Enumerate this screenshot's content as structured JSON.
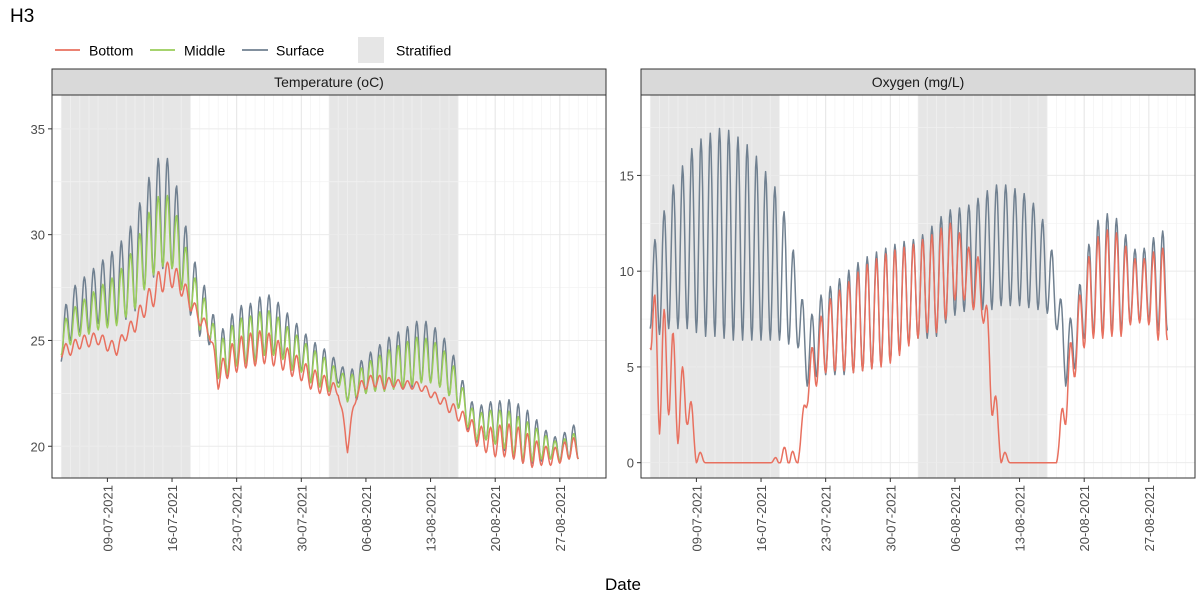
{
  "figure": {
    "title": "H3",
    "xlabel": "Date"
  },
  "legend": {
    "placement": "top-left",
    "items": [
      {
        "label": "Bottom",
        "kind": "line",
        "color": "#E8705F"
      },
      {
        "label": "Middle",
        "kind": "line",
        "color": "#9ACD5A"
      },
      {
        "label": "Surface",
        "kind": "line",
        "color": "#708090"
      },
      {
        "label": "Stratified",
        "kind": "fill",
        "color": "#E6E6E6"
      }
    ]
  },
  "x_ticks": [
    "09-07-2021",
    "16-07-2021",
    "23-07-2021",
    "30-07-2021",
    "06-08-2021",
    "13-08-2021",
    "20-08-2021",
    "27-08-2021"
  ],
  "chart_data": [
    {
      "type": "line",
      "title": "Temperature (oC)",
      "x_range": [
        "2021-07-03",
        "2021-09-01"
      ],
      "ylim": [
        18.5,
        36.6
      ],
      "y_ticks": [
        20,
        25,
        30,
        35
      ],
      "grid": true,
      "stratified_periods": [
        [
          "2021-07-04",
          "2021-07-18"
        ],
        [
          "2021-08-02",
          "2021-08-16"
        ]
      ],
      "daily_cycle": true,
      "series": [
        {
          "name": "Surface",
          "color": "#708090",
          "start": "2021-07-04",
          "mean": [
            25.0,
            26.2,
            26.6,
            26.8,
            27.2,
            27.4,
            27.6,
            28.0,
            28.6,
            29.8,
            30.6,
            31.2,
            30.8,
            29.4,
            27.8,
            26.6,
            26.0,
            24.2,
            24.6,
            25.2,
            25.3,
            25.4,
            25.8,
            25.7,
            25.4,
            24.8,
            24.6,
            24.0,
            23.8,
            23.5,
            23.5,
            22.8,
            23.0,
            23.4,
            23.6,
            23.8,
            24.0,
            24.1,
            24.3,
            24.5,
            24.4,
            24.1,
            23.6,
            22.8,
            21.6,
            21.0,
            21.2,
            21.1,
            21.0,
            20.8,
            20.5,
            20.4,
            20.1,
            20.0,
            19.8,
            20.2
          ],
          "amplitude": [
            1.0,
            1.2,
            1.2,
            1.4,
            1.4,
            1.6,
            1.8,
            2.0,
            2.2,
            2.4,
            2.6,
            2.8,
            2.4,
            2.0,
            1.6,
            1.4,
            1.2,
            1.0,
            1.3,
            1.4,
            1.4,
            1.4,
            1.5,
            1.3,
            1.2,
            1.2,
            1.0,
            1.0,
            1.0,
            0.9,
            0.5,
            0.7,
            0.8,
            0.9,
            1.0,
            1.2,
            1.3,
            1.4,
            1.5,
            1.5,
            1.4,
            1.3,
            1.2,
            1.0,
            0.8,
            0.8,
            0.9,
            1.0,
            1.2,
            1.4,
            1.3,
            1.2,
            0.8,
            0.6,
            0.5,
            0.8
          ]
        },
        {
          "name": "Middle",
          "color": "#9ACD5A",
          "start": "2021-07-04",
          "mean": [
            25.0,
            25.6,
            26.0,
            26.2,
            26.5,
            26.7,
            26.9,
            27.4,
            28.0,
            29.0,
            29.8,
            30.3,
            30.0,
            28.8,
            27.5,
            26.4,
            25.9,
            24.0,
            24.4,
            24.9,
            25.0,
            25.1,
            25.4,
            25.3,
            25.0,
            24.5,
            24.3,
            23.8,
            23.6,
            23.3,
            23.2,
            22.7,
            22.9,
            23.2,
            23.4,
            23.5,
            23.7,
            23.8,
            24.0,
            24.1,
            24.0,
            23.8,
            23.3,
            22.6,
            21.5,
            20.9,
            21.0,
            20.9,
            20.8,
            20.6,
            20.3,
            20.2,
            20.0,
            19.9,
            19.7,
            20.0
          ],
          "amplitude": [
            0.7,
            0.8,
            0.8,
            0.9,
            1.0,
            1.1,
            1.2,
            1.3,
            1.5,
            1.6,
            1.7,
            1.8,
            1.6,
            1.4,
            1.1,
            0.9,
            0.8,
            0.8,
            1.0,
            1.1,
            1.1,
            1.1,
            1.1,
            1.0,
            0.9,
            0.9,
            0.8,
            0.8,
            0.8,
            0.7,
            0.4,
            0.6,
            0.6,
            0.7,
            0.8,
            0.9,
            1.0,
            1.0,
            1.1,
            1.1,
            1.0,
            1.0,
            0.9,
            0.8,
            0.6,
            0.6,
            0.7,
            0.8,
            0.9,
            1.0,
            0.9,
            0.9,
            0.6,
            0.5,
            0.4,
            0.6
          ]
        },
        {
          "name": "Bottom",
          "color": "#E8705F",
          "start": "2021-07-04",
          "mean": [
            24.5,
            24.6,
            24.9,
            25.0,
            25.1,
            24.8,
            24.6,
            25.3,
            25.8,
            26.6,
            27.2,
            28.0,
            28.1,
            27.6,
            26.8,
            26.0,
            25.5,
            23.2,
            23.9,
            24.3,
            24.5,
            24.6,
            24.7,
            24.5,
            24.2,
            23.9,
            23.6,
            23.2,
            23.0,
            22.8,
            22.6,
            20.0,
            22.6,
            23.0,
            23.1,
            23.0,
            23.0,
            22.9,
            22.9,
            22.8,
            22.5,
            22.2,
            21.9,
            21.5,
            21.1,
            20.5,
            20.3,
            20.2,
            20.3,
            20.2,
            20.0,
            19.7,
            19.6,
            19.5,
            19.6,
            19.9
          ],
          "amplitude": [
            0.3,
            0.3,
            0.3,
            0.3,
            0.3,
            0.3,
            0.3,
            0.3,
            0.4,
            0.5,
            0.6,
            0.7,
            0.6,
            0.5,
            0.4,
            0.3,
            0.3,
            0.5,
            0.7,
            0.8,
            0.8,
            0.8,
            0.8,
            0.7,
            0.6,
            0.6,
            0.5,
            0.5,
            0.5,
            0.4,
            0.2,
            0.3,
            0.3,
            0.3,
            0.3,
            0.3,
            0.2,
            0.2,
            0.2,
            0.2,
            0.2,
            0.2,
            0.3,
            0.3,
            0.4,
            0.5,
            0.6,
            0.7,
            0.8,
            0.8,
            0.8,
            0.7,
            0.5,
            0.4,
            0.4,
            0.5
          ]
        }
      ]
    },
    {
      "type": "line",
      "title": "Oxygen (mg/L)",
      "x_range": [
        "2021-07-03",
        "2021-09-01"
      ],
      "ylim": [
        -0.8,
        19.2
      ],
      "y_ticks": [
        0,
        5,
        10,
        15
      ],
      "grid": true,
      "stratified_periods": [
        [
          "2021-07-04",
          "2021-07-18"
        ],
        [
          "2021-08-02",
          "2021-08-16"
        ]
      ],
      "daily_cycle": true,
      "series": [
        {
          "name": "Surface",
          "color": "#708090",
          "start": "2021-07-04",
          "mean": [
            9.0,
            9.5,
            10.5,
            11.0,
            11.5,
            11.8,
            11.8,
            12.0,
            12.0,
            11.8,
            11.6,
            11.4,
            11.0,
            10.6,
            10.2,
            9.2,
            8.0,
            5.5,
            6.5,
            6.8,
            7.0,
            7.2,
            7.5,
            7.7,
            7.9,
            8.1,
            8.3,
            8.6,
            8.9,
            9.1,
            9.3,
            9.6,
            10.2,
            10.5,
            10.6,
            10.8,
            11.0,
            11.2,
            11.4,
            11.3,
            11.2,
            11.0,
            10.6,
            10.0,
            8.5,
            5.5,
            6.5,
            8.5,
            9.5,
            9.8,
            9.9,
            9.7,
            9.3,
            9.2,
            9.4,
            9.5
          ],
          "amplitude": [
            2.0,
            2.8,
            3.5,
            4.0,
            4.5,
            5.0,
            5.2,
            5.4,
            5.5,
            5.4,
            5.2,
            5.0,
            4.6,
            4.2,
            3.8,
            3.0,
            2.0,
            1.5,
            2.0,
            2.2,
            2.4,
            2.6,
            2.8,
            2.9,
            3.0,
            3.0,
            3.0,
            2.9,
            2.7,
            2.6,
            2.8,
            3.0,
            2.9,
            2.8,
            2.7,
            2.8,
            3.0,
            3.2,
            3.2,
            3.1,
            3.0,
            2.9,
            2.6,
            2.2,
            1.5,
            1.5,
            1.6,
            2.0,
            2.8,
            3.2,
            3.1,
            2.8,
            2.0,
            1.8,
            2.0,
            2.6
          ]
        },
        {
          "name": "Bottom",
          "color": "#E8705F",
          "start": "2021-07-04",
          "mean": [
            8.0,
            4.5,
            5.5,
            3.0,
            3.5,
            0.5,
            0.0,
            0.0,
            0.0,
            0.0,
            0.0,
            0.0,
            0.0,
            0.0,
            0.2,
            0.5,
            0.0,
            4.0,
            5.5,
            6.5,
            6.8,
            7.0,
            7.2,
            7.5,
            7.7,
            7.9,
            8.1,
            8.4,
            8.7,
            9.0,
            9.3,
            9.4,
            10.0,
            10.5,
            10.0,
            9.5,
            9.0,
            4.0,
            0.5,
            0.0,
            0.0,
            0.0,
            0.0,
            0.0,
            0.0,
            3.5,
            6.0,
            8.0,
            9.0,
            9.3,
            9.4,
            9.2,
            9.0,
            8.9,
            9.0,
            8.8
          ],
          "amplitude": [
            2.0,
            3.0,
            3.0,
            2.0,
            1.5,
            0.5,
            0.0,
            0.0,
            0.0,
            0.0,
            0.0,
            0.0,
            0.0,
            0.0,
            0.3,
            0.6,
            0.0,
            1.0,
            1.5,
            1.8,
            2.0,
            2.2,
            2.5,
            2.7,
            2.8,
            2.9,
            2.9,
            2.8,
            2.6,
            2.5,
            2.5,
            2.6,
            2.5,
            2.0,
            1.5,
            1.5,
            1.5,
            1.5,
            0.5,
            0.0,
            0.0,
            0.0,
            0.0,
            0.0,
            0.0,
            1.5,
            1.5,
            2.0,
            2.5,
            2.8,
            2.8,
            2.6,
            1.8,
            1.6,
            1.8,
            2.4
          ]
        }
      ]
    }
  ]
}
